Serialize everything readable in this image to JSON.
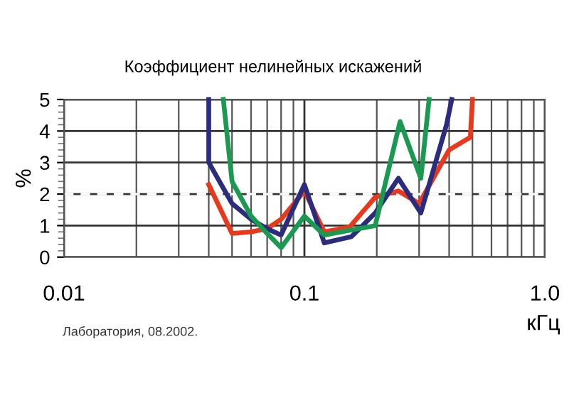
{
  "chart_data": {
    "type": "line",
    "title": "Коэффициент нелинейных искажений",
    "xlabel": "кГц",
    "ylabel": "%",
    "annotations": [
      "Лаборатория, 08.2002."
    ],
    "series": [
      {
        "color": "#e8391d",
        "x": [
          0.04,
          0.05,
          0.06,
          0.07,
          0.08,
          0.1,
          0.121,
          0.154,
          0.197,
          0.246,
          0.3,
          0.4,
          0.49,
          0.5
        ],
        "values": [
          2.3,
          0.75,
          0.8,
          0.9,
          1.2,
          2.1,
          0.8,
          0.95,
          1.9,
          2.1,
          1.7,
          3.4,
          3.8,
          5
        ]
      },
      {
        "color": "#2b2c7e",
        "x": [
          0.04,
          0.04,
          0.05,
          0.06,
          0.07,
          0.08,
          0.1,
          0.121,
          0.157,
          0.197,
          0.246,
          0.305,
          0.39,
          0.41
        ],
        "values": [
          5,
          3,
          1.7,
          1.2,
          0.9,
          0.7,
          2.3,
          0.45,
          0.65,
          1.4,
          2.5,
          1.4,
          4.2,
          5
        ]
      },
      {
        "color": "#1a9a50",
        "x": [
          0.046,
          0.05,
          0.06,
          0.067,
          0.08,
          0.1,
          0.121,
          0.197,
          0.25,
          0.305,
          0.33
        ],
        "values": [
          5,
          2.4,
          1.3,
          0.9,
          0.3,
          1.3,
          0.7,
          1.0,
          4.3,
          2.5,
          5
        ]
      }
    ],
    "log": "x",
    "xlim": [
      0.01,
      1
    ],
    "xticks": [
      0.01,
      0.1,
      {
        "value": 1,
        "label": "1.0"
      }
    ],
    "ylim": [
      0,
      5
    ],
    "yticks": [
      0,
      1,
      2,
      3,
      4,
      5
    ],
    "grid": true,
    "legend": false,
    "ref_lines": [
      {
        "axis": "y",
        "value": 2,
        "color": "#ffffff",
        "line_style": "dashed"
      }
    ]
  }
}
